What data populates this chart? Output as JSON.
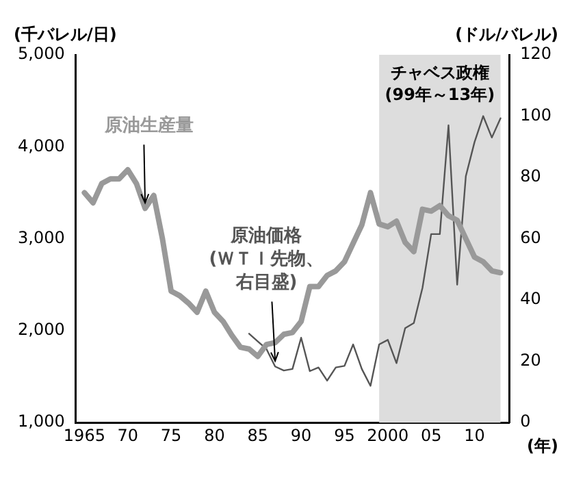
{
  "chart_data": {
    "type": "line",
    "xlabel": "(年)",
    "ylabel": "(千バレル/日)",
    "y2label": "(ドル/バレル)",
    "xlim": [
      1964,
      2014
    ],
    "xticks": [
      {
        "value": 1965,
        "label": "1965"
      },
      {
        "value": 1970,
        "label": "70"
      },
      {
        "value": 1975,
        "label": "75"
      },
      {
        "value": 1980,
        "label": "80"
      },
      {
        "value": 1985,
        "label": "85"
      },
      {
        "value": 1990,
        "label": "90"
      },
      {
        "value": 1995,
        "label": "95"
      },
      {
        "value": 2000,
        "label": "2000"
      },
      {
        "value": 2005,
        "label": "05"
      },
      {
        "value": 2010,
        "label": "10"
      }
    ],
    "ylim": [
      1000,
      5000
    ],
    "yticks": [
      {
        "value": 1000,
        "label": "1,000"
      },
      {
        "value": 2000,
        "label": "2,000"
      },
      {
        "value": 3000,
        "label": "3,000"
      },
      {
        "value": 4000,
        "label": "4,000"
      },
      {
        "value": 5000,
        "label": "5,000"
      }
    ],
    "y2lim": [
      0,
      120
    ],
    "y2ticks": [
      0,
      20,
      40,
      60,
      80,
      100,
      120
    ],
    "series": [
      {
        "name": "原油生産量",
        "color": "#999999",
        "x": [
          1965,
          1966,
          1967,
          1968,
          1969,
          1970,
          1971,
          1972,
          1973,
          1974,
          1975,
          1976,
          1977,
          1978,
          1979,
          1980,
          1981,
          1982,
          1983,
          1984,
          1985,
          1986,
          1987,
          1988,
          1989,
          1990,
          1991,
          1992,
          1993,
          1994,
          1995,
          1996,
          1997,
          1998,
          1999,
          2000,
          2001,
          2002,
          2003,
          2004,
          2005,
          2006,
          2007,
          2008,
          2009,
          2010,
          2011,
          2012,
          2013
        ],
        "values": [
          3500,
          3390,
          3600,
          3650,
          3650,
          3750,
          3600,
          3330,
          3470,
          3000,
          2430,
          2380,
          2300,
          2200,
          2430,
          2200,
          2100,
          1950,
          1820,
          1800,
          1720,
          1850,
          1870,
          1960,
          1980,
          2100,
          2480,
          2480,
          2600,
          2650,
          2750,
          2950,
          3150,
          3500,
          3160,
          3130,
          3190,
          2960,
          2860,
          3320,
          3300,
          3360,
          3250,
          3200,
          3000,
          2800,
          2750,
          2650,
          2630
        ]
      },
      {
        "name": "原油価格(ＷＴＩ先物、右目盛)",
        "color": "#555555",
        "axis": "y2",
        "x": [
          1984,
          1985,
          1986,
          1987,
          1988,
          1989,
          1990,
          1991,
          1992,
          1993,
          1994,
          1995,
          1996,
          1997,
          1998,
          1999,
          2000,
          2001,
          2002,
          2003,
          2004,
          2005,
          2006,
          2007,
          2008,
          2009,
          2010,
          2011,
          2012,
          2013
        ],
        "values": [
          29,
          26.5,
          24,
          18.3,
          17,
          17.5,
          27.7,
          16.8,
          18,
          13.7,
          18,
          18.5,
          25.5,
          17.5,
          12,
          25.5,
          27,
          19.4,
          30.8,
          32.5,
          44,
          61.5,
          61.5,
          97,
          45,
          80.4,
          91.5,
          100,
          93,
          99.3
        ]
      }
    ],
    "bands": [
      {
        "axis": "x",
        "from": 1999,
        "to": 2013,
        "label": "チャベス政権(99年～13年)",
        "color": "#dddddd"
      }
    ],
    "grid": false,
    "legend": false,
    "marker": "none",
    "line_style": "solid"
  }
}
